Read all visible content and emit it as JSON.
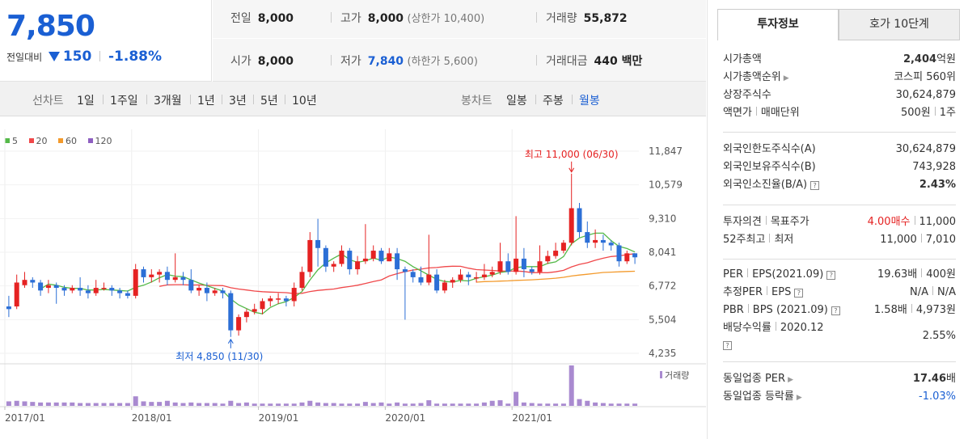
{
  "header": {
    "price": "7,850",
    "diff_label": "전일대비",
    "diff_value": "150",
    "diff_pct": "-1.88%"
  },
  "stats": {
    "prev_label": "전일",
    "prev_value": "8,000",
    "high_label": "고가",
    "high_value": "8,000",
    "high_sub": "(상한가 10,400)",
    "volume_label": "거래량",
    "volume_value": "55,872",
    "open_label": "시가",
    "open_value": "8,000",
    "low_label": "저가",
    "low_value": "7,840",
    "low_sub": "(하한가 5,600)",
    "amount_label": "거래대금",
    "amount_value": "440 백만"
  },
  "toolbar": {
    "line_head": "선차트",
    "periods": [
      "1일",
      "1주일",
      "3개월",
      "1년",
      "3년",
      "5년",
      "10년"
    ],
    "candle_head": "봉차트",
    "candle": [
      "일봉",
      "주봉",
      "월봉"
    ],
    "active_candle": "월봉"
  },
  "legend": [
    "5",
    "20",
    "60",
    "120"
  ],
  "colors": {
    "ma5": "#54b948",
    "ma20": "#f0484a",
    "ma60": "#f39a2c",
    "ma120": "#8e5fc1",
    "up": "#e52222",
    "down": "#2c6fd6",
    "volume": "#a98ad0"
  },
  "chart_data": {
    "type": "candlestick",
    "y_ticks": [
      "11,847",
      "10,579",
      "9,310",
      "8,041",
      "6,772",
      "5,504",
      "4,235"
    ],
    "ylim": [
      4235,
      11847
    ],
    "x_ticks": [
      "2017/01",
      "2018/01",
      "2019/01",
      "2020/01",
      "2021/01"
    ],
    "high_annotation": "최고 11,000 (06/30)",
    "low_annotation": "최저 4,850 (11/30)",
    "volume_label": "거래량",
    "candles": [
      [
        6000,
        5900,
        6400,
        5600
      ],
      [
        6000,
        6900,
        7200,
        5900
      ],
      [
        6800,
        7000,
        7300,
        6700
      ],
      [
        7000,
        6900,
        7100,
        6700
      ],
      [
        6900,
        6600,
        7000,
        6400
      ],
      [
        6700,
        6800,
        7000,
        6500
      ],
      [
        6800,
        6700,
        6900,
        6100
      ],
      [
        6700,
        6600,
        6800,
        6400
      ],
      [
        6600,
        6700,
        6800,
        6500
      ],
      [
        6700,
        6600,
        7100,
        6400
      ],
      [
        6600,
        6500,
        6800,
        6300
      ],
      [
        6500,
        6700,
        7000,
        6400
      ],
      [
        6700,
        6700,
        6900,
        6600
      ],
      [
        6700,
        6600,
        6800,
        6400
      ],
      [
        6600,
        6500,
        6700,
        6300
      ],
      [
        6500,
        6400,
        6600,
        6300
      ],
      [
        6400,
        7400,
        7600,
        6300
      ],
      [
        7400,
        7100,
        7500,
        6900
      ],
      [
        7100,
        7200,
        7400,
        6900
      ],
      [
        7200,
        7300,
        7400,
        6900
      ],
      [
        7300,
        7000,
        7500,
        6800
      ],
      [
        7000,
        7100,
        8000,
        6900
      ],
      [
        7100,
        7000,
        7300,
        6800
      ],
      [
        7000,
        6600,
        7400,
        6500
      ],
      [
        6600,
        6700,
        6800,
        6400
      ],
      [
        6700,
        6500,
        6900,
        6200
      ],
      [
        6500,
        6600,
        6700,
        6400
      ],
      [
        6600,
        6500,
        6700,
        6300
      ],
      [
        6500,
        5100,
        6600,
        4850
      ],
      [
        5100,
        5600,
        5700,
        4900
      ],
      [
        5600,
        5800,
        5900,
        5400
      ],
      [
        5800,
        5900,
        6100,
        5700
      ],
      [
        5900,
        6200,
        6300,
        5700
      ],
      [
        6200,
        6300,
        6400,
        6000
      ],
      [
        6300,
        6300,
        6500,
        6100
      ],
      [
        6300,
        6200,
        6400,
        6000
      ],
      [
        6200,
        6700,
        6900,
        6000
      ],
      [
        6700,
        7300,
        7500,
        6600
      ],
      [
        7300,
        8500,
        8800,
        7100
      ],
      [
        8500,
        8200,
        9300,
        7500
      ],
      [
        8200,
        7500,
        8300,
        7300
      ],
      [
        7500,
        7600,
        7700,
        7300
      ],
      [
        7600,
        8100,
        8300,
        7500
      ],
      [
        8100,
        7400,
        8200,
        7200
      ],
      [
        7400,
        7700,
        7900,
        7200
      ],
      [
        7700,
        7800,
        9100,
        7600
      ],
      [
        7800,
        8100,
        8300,
        7700
      ],
      [
        8100,
        7700,
        8200,
        7600
      ],
      [
        7700,
        8000,
        8200,
        7700
      ],
      [
        8000,
        7400,
        8200,
        7000
      ],
      [
        7400,
        7300,
        7500,
        5500
      ],
      [
        7300,
        7100,
        7400,
        6900
      ],
      [
        7100,
        6900,
        7500,
        6800
      ],
      [
        6900,
        7200,
        8700,
        6800
      ],
      [
        7200,
        6600,
        7400,
        6500
      ],
      [
        6600,
        6900,
        7000,
        6500
      ],
      [
        6900,
        7000,
        7100,
        6700
      ],
      [
        7000,
        7200,
        7400,
        6900
      ],
      [
        7200,
        7100,
        7300,
        6800
      ],
      [
        7100,
        7100,
        7300,
        6900
      ],
      [
        7100,
        7200,
        7600,
        7000
      ],
      [
        7200,
        7300,
        7500,
        7100
      ],
      [
        7300,
        7700,
        8400,
        7200
      ],
      [
        7700,
        7300,
        8000,
        7200
      ],
      [
        7300,
        7800,
        9400,
        7200
      ],
      [
        7800,
        7400,
        8200,
        7100
      ],
      [
        7400,
        7300,
        7500,
        7200
      ],
      [
        7300,
        7700,
        8300,
        7200
      ],
      [
        7700,
        7900,
        8100,
        7600
      ],
      [
        7900,
        8100,
        8400,
        7800
      ],
      [
        8100,
        8400,
        8500,
        8000
      ],
      [
        8400,
        9700,
        11000,
        8300
      ],
      [
        9700,
        8800,
        9900,
        8600
      ],
      [
        8800,
        8400,
        9200,
        8200
      ],
      [
        8400,
        8500,
        8900,
        8200
      ],
      [
        8500,
        8400,
        8700,
        8100
      ],
      [
        8400,
        8300,
        8500,
        8100
      ],
      [
        8300,
        7700,
        8400,
        7500
      ],
      [
        7700,
        8000,
        8100,
        7600
      ],
      [
        8000,
        7850,
        8000,
        7600
      ]
    ],
    "volumes": [
      8,
      9,
      8,
      7,
      6,
      6,
      6,
      6,
      6,
      5,
      5,
      5,
      5,
      5,
      5,
      5,
      17,
      8,
      7,
      7,
      9,
      6,
      5,
      6,
      5,
      5,
      5,
      4,
      9,
      5,
      6,
      4,
      4,
      4,
      4,
      4,
      4,
      6,
      9,
      6,
      5,
      5,
      4,
      4,
      4,
      7,
      5,
      6,
      4,
      6,
      4,
      4,
      5,
      10,
      4,
      4,
      4,
      4,
      4,
      4,
      6,
      9,
      10,
      4,
      25,
      6,
      5,
      4,
      4,
      4,
      4,
      72,
      12,
      9,
      6,
      5,
      4,
      4,
      4,
      4
    ]
  },
  "tabs": {
    "info": "투자정보",
    "orderbook": "호가 10단계"
  },
  "info": {
    "g1": [
      {
        "k": "시가총액",
        "v_bold": "2,404",
        "v": "억원"
      },
      {
        "k": "시가총액순위",
        "arrow": true,
        "v": "코스피 560위"
      },
      {
        "k": "상장주식수",
        "v": "30,624,879"
      },
      {
        "k": "액면가",
        "k2": "매매단위",
        "v": "500원",
        "v2": "1주"
      }
    ],
    "g2": [
      {
        "k": "외국인한도주식수(A)",
        "v": "30,624,879"
      },
      {
        "k": "외국인보유주식수(B)",
        "v": "743,928"
      },
      {
        "k": "외국인소진율(B/A)",
        "q": true,
        "v_bold": "2.43%"
      }
    ],
    "g3": [
      {
        "k": "투자의견",
        "k2": "목표주가",
        "v": "4.00매수",
        "v2": "11,000"
      },
      {
        "k": "52주최고",
        "k2": "최저",
        "v": "11,000",
        "v2": "7,010"
      }
    ],
    "g4": [
      {
        "k": "PER",
        "k2": "EPS(2021.09)",
        "v": "19.63배",
        "v2": "400원"
      },
      {
        "k": "추정PER",
        "k2": "EPS",
        "v": "N/A",
        "v2": "N/A"
      },
      {
        "k": "PBR",
        "k2": "BPS (2021.09)",
        "v": "1.58배",
        "v2": "4,973원"
      },
      {
        "k": "배당수익률",
        "k2": "2020.12",
        "v": "2.55%"
      }
    ],
    "g5": [
      {
        "k": "동일업종 PER",
        "v_bold": "17.46",
        "v": "배"
      },
      {
        "k": "동일업종 등락률",
        "v": "-1.03%"
      }
    ]
  }
}
